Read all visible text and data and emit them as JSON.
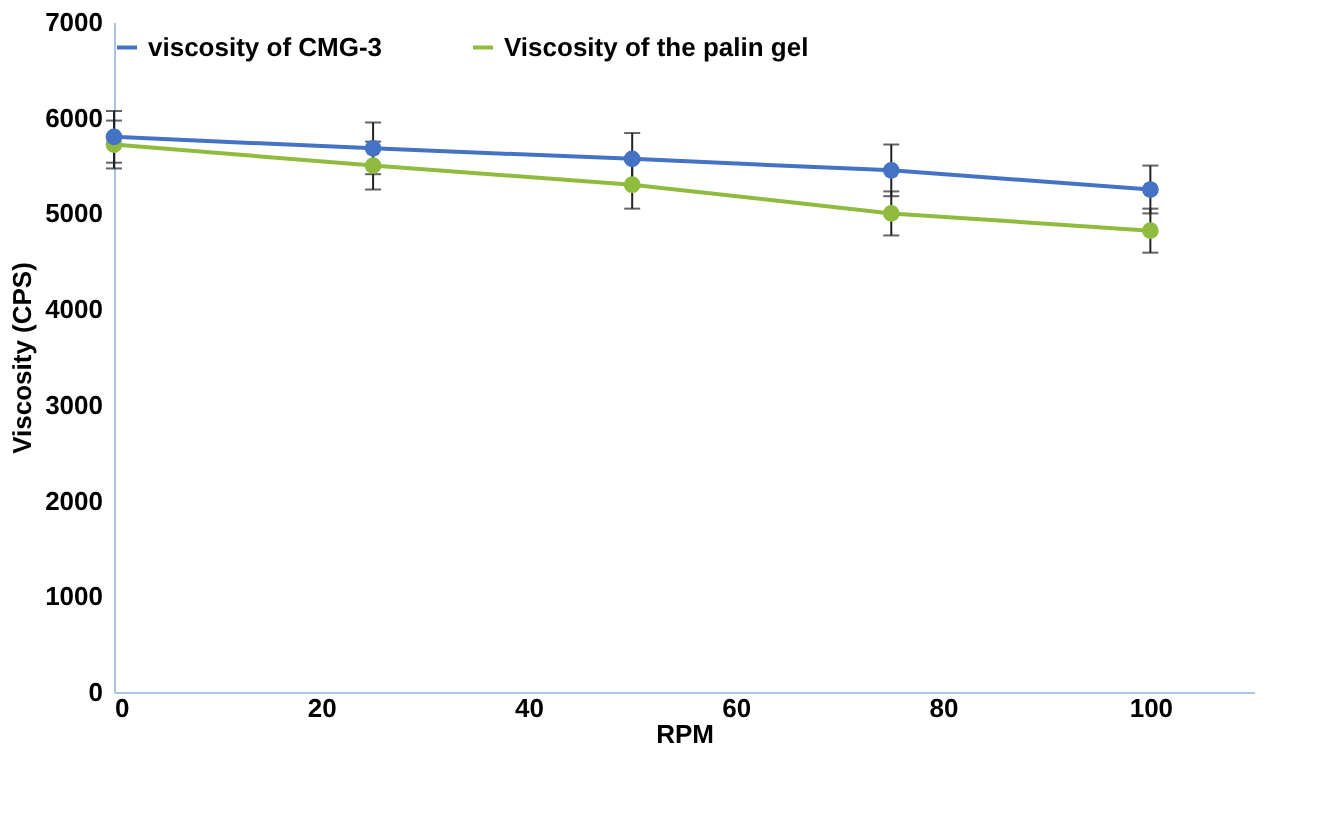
{
  "chart_data": {
    "type": "line",
    "xlabel": "RPM",
    "ylabel": "Viscosity  (CPS)",
    "x": [
      0,
      25,
      50,
      75,
      100
    ],
    "series": [
      {
        "name": "viscosity of CMG-3",
        "color": "#4472c4",
        "values": [
          5800,
          5680,
          5570,
          5450,
          5250
        ],
        "errors": [
          270,
          270,
          270,
          270,
          250
        ]
      },
      {
        "name": "Viscosity of the palin gel",
        "color": "#8fbc3f",
        "values": [
          5720,
          5500,
          5300,
          5000,
          4820
        ],
        "errors": [
          250,
          250,
          250,
          230,
          230
        ]
      }
    ],
    "xlim": [
      0,
      110
    ],
    "xticks": [
      0,
      20,
      40,
      60,
      80,
      100
    ],
    "ylim": [
      0,
      7000
    ],
    "yticks": [
      0,
      1000,
      2000,
      3000,
      4000,
      5000,
      6000,
      7000
    ],
    "grid": false,
    "legend": "top",
    "marker": "circle",
    "line_style": "solid"
  }
}
